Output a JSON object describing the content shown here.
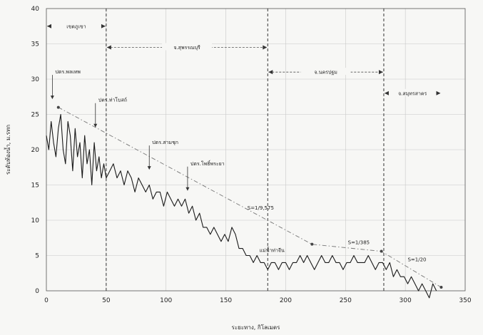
{
  "chart_data": {
    "type": "line",
    "title": "",
    "xlabel": "ระยะทาง, กิโลเมตร",
    "ylabel": "ระดับท้องน้ำ, ม.รทก",
    "xlim": [
      0,
      350
    ],
    "ylim": [
      0,
      40
    ],
    "xticks": [
      "0",
      "50",
      "100",
      "150",
      "200",
      "250",
      "300",
      "350"
    ],
    "yticks": [
      "0",
      "5",
      "10",
      "15",
      "20",
      "25",
      "30",
      "35",
      "40"
    ],
    "grid": true,
    "legend": "none",
    "series": [
      {
        "line_color": "#1a1a1a",
        "x": [
          0,
          2,
          4,
          6,
          8,
          10,
          12,
          14,
          16,
          18,
          20,
          22,
          24,
          26,
          28,
          30,
          32,
          34,
          36,
          38,
          40,
          42,
          44,
          46,
          48,
          50,
          53,
          56,
          59,
          62,
          65,
          68,
          71,
          74,
          77,
          80,
          83,
          86,
          89,
          92,
          95,
          98,
          101,
          104,
          107,
          110,
          113,
          116,
          119,
          122,
          125,
          128,
          131,
          134,
          137,
          140,
          143,
          146,
          149,
          152,
          155,
          158,
          161,
          164,
          167,
          170,
          173,
          176,
          179,
          182,
          185,
          188,
          191,
          194,
          197,
          200,
          203,
          206,
          209,
          212,
          215,
          218,
          221,
          224,
          227,
          230,
          233,
          236,
          239,
          242,
          245,
          248,
          251,
          254,
          257,
          260,
          263,
          266,
          269,
          272,
          275,
          278,
          281,
          284,
          287,
          290,
          293,
          296,
          299,
          302,
          305,
          308,
          311,
          314,
          317,
          320,
          323,
          326
        ],
        "y": [
          22,
          20,
          24,
          21,
          19,
          23,
          25,
          20,
          18,
          24,
          22,
          17,
          23,
          19,
          21,
          16,
          22,
          18,
          20,
          15,
          21,
          17,
          19,
          16,
          18,
          16,
          17,
          18,
          16,
          17,
          15,
          17,
          16,
          14,
          16,
          15,
          14,
          15,
          13,
          14,
          14,
          12,
          14,
          13,
          12,
          13,
          12,
          13,
          11,
          12,
          10,
          11,
          9,
          9,
          8,
          9,
          8,
          7,
          8,
          7,
          9,
          8,
          6,
          6,
          5,
          5,
          4,
          5,
          4,
          4,
          3,
          4,
          4,
          3,
          4,
          4,
          3,
          4,
          4,
          5,
          4,
          5,
          4,
          3,
          4,
          5,
          4,
          4,
          5,
          4,
          4,
          3,
          4,
          4,
          5,
          4,
          4,
          4,
          5,
          4,
          3,
          4,
          4,
          3,
          4,
          2,
          3,
          2,
          2,
          1,
          2,
          1,
          0,
          1,
          0,
          -1,
          1,
          0
        ]
      },
      {
        "line_color": "#777777",
        "x": [
          10,
          222,
          280,
          330
        ],
        "y": [
          26,
          6.6,
          5.6,
          0.5
        ]
      }
    ],
    "slope_labels": [
      {
        "text": "S=1/9,575",
        "x": 168,
        "y": 11.5
      },
      {
        "text": "S=1/385",
        "x": 252,
        "y": 6.6
      },
      {
        "text": "S=1/20",
        "x": 302,
        "y": 4.2
      }
    ],
    "regions": [
      {
        "label": "เขตภูเขา",
        "x_start": 0,
        "x_end": 50,
        "y": 37.5
      },
      {
        "label": "จ.สุพรรณบุรี",
        "x_start": 50,
        "x_end": 185,
        "y": 34.5
      },
      {
        "label": "จ.นครปฐม",
        "x_start": 185,
        "x_end": 282,
        "y": 31
      },
      {
        "label": "จ.สมุทรสาคร",
        "x_start": 282,
        "x_end": 330,
        "y": 28
      }
    ],
    "dashed_lines_x": [
      50,
      185,
      282
    ],
    "structures": [
      {
        "label": "ปตร.พลเทพ",
        "x": 5,
        "y_top": 31
      },
      {
        "label": "ปตร.ท่าโบสถ์",
        "x": 41,
        "y_top": 27
      },
      {
        "label": "ปตร.สามชุก",
        "x": 86,
        "y_top": 21
      },
      {
        "label": "ปตร.โพธิ์พระยา",
        "x": 118,
        "y_top": 18
      }
    ],
    "annotations": [
      {
        "text": "แม่น้ำท่าจีน",
        "x": 178,
        "y": 5.5
      }
    ]
  }
}
